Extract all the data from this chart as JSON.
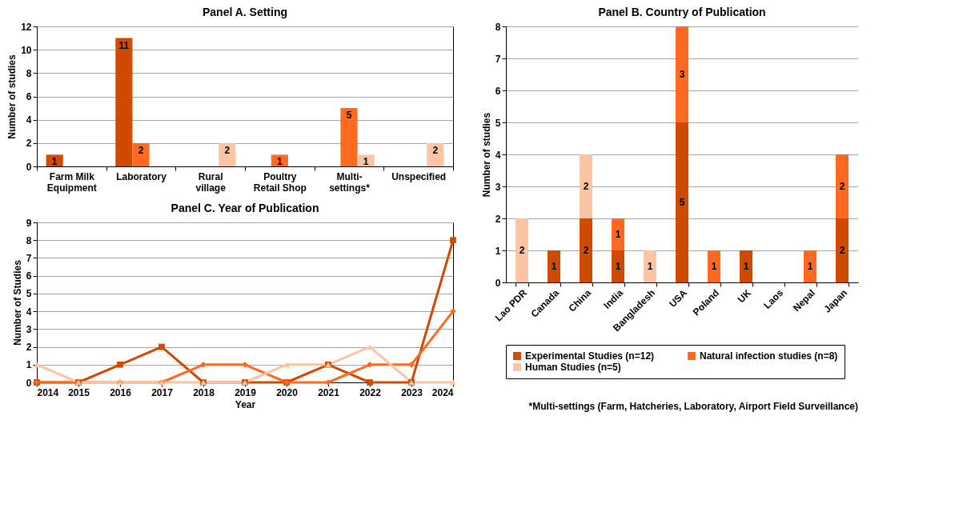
{
  "chart_data": [
    {
      "type": "bar",
      "title": "Panel A. Setting",
      "ylabel": "Number of studies",
      "categories": [
        "Farm Milk Equipment",
        "Laboratory",
        "Rural village",
        "Poultry Retail Shop",
        "Multi-settings*",
        "Unspecified"
      ],
      "ylim": [
        0,
        12
      ],
      "yticks": [
        0,
        2,
        4,
        6,
        8,
        10,
        12
      ],
      "grid": "y",
      "data_labels": true,
      "series": [
        {
          "color": "#d04a02",
          "values": [
            1,
            11,
            null,
            null,
            null,
            null
          ]
        },
        {
          "color": "#fd6a20",
          "values": [
            null,
            2,
            null,
            1,
            5,
            null
          ]
        },
        {
          "color": "#fbc4a4",
          "values": [
            null,
            null,
            2,
            null,
            1,
            2
          ]
        }
      ]
    },
    {
      "type": "bar",
      "title": "Panel B. Country of Publication",
      "ylabel": "Number of studies",
      "categories": [
        "Lao PDR",
        "Canada",
        "China",
        "India",
        "Bangladesh",
        "USA",
        "Poland",
        "UK",
        "Laos",
        "Nepal",
        "Japan"
      ],
      "ylim": [
        0,
        8
      ],
      "yticks": [
        0,
        1,
        2,
        3,
        4,
        5,
        6,
        7,
        8
      ],
      "grid": "y",
      "stacked": true,
      "data_labels": true,
      "legend": "bottom",
      "annotations": [
        "*Multi-settings (Farm, Hatcheries, Laboratory, Airport Field Surveillance)"
      ],
      "series": [
        {
          "name": "Experimental Studies (n=12)",
          "color": "#d04a02",
          "values": [
            null,
            1,
            2,
            1,
            null,
            5,
            null,
            1,
            null,
            null,
            2
          ]
        },
        {
          "name": "Natural infection studies (n=8)",
          "color": "#fd6a20",
          "values": [
            null,
            null,
            null,
            1,
            null,
            3,
            1,
            null,
            null,
            1,
            2
          ]
        },
        {
          "name": "Human Studies (n=5)",
          "color": "#fbc4a4",
          "values": [
            2,
            null,
            2,
            null,
            1,
            null,
            null,
            null,
            null,
            null,
            null
          ]
        }
      ]
    },
    {
      "type": "line",
      "title": "Panel C. Year of Publication",
      "xlabel": "Year",
      "ylabel": "Number of Studies",
      "x": [
        2014,
        2015,
        2016,
        2017,
        2018,
        2019,
        2020,
        2021,
        2022,
        2023,
        2024
      ],
      "xlim": [
        2014,
        2024
      ],
      "xticks": [
        2014,
        2015,
        2016,
        2017,
        2018,
        2019,
        2020,
        2021,
        2022,
        2023,
        2024
      ],
      "ylim": [
        0,
        9
      ],
      "yticks": [
        0,
        1,
        2,
        3,
        4,
        5,
        6,
        7,
        8,
        9
      ],
      "grid": "y",
      "series": [
        {
          "color": "#d04a02",
          "marker": "square",
          "values": [
            0,
            0,
            1,
            2,
            0,
            0,
            0,
            1,
            0,
            0,
            8
          ]
        },
        {
          "color": "#fd6a20",
          "marker": "diamond",
          "values": [
            0,
            0,
            0,
            0,
            1,
            1,
            0,
            0,
            1,
            1,
            4
          ]
        },
        {
          "color": "#fbc4a4",
          "marker": "triangle",
          "values": [
            1,
            0,
            0,
            0,
            0,
            0,
            1,
            1,
            2,
            0,
            0
          ]
        }
      ]
    }
  ]
}
